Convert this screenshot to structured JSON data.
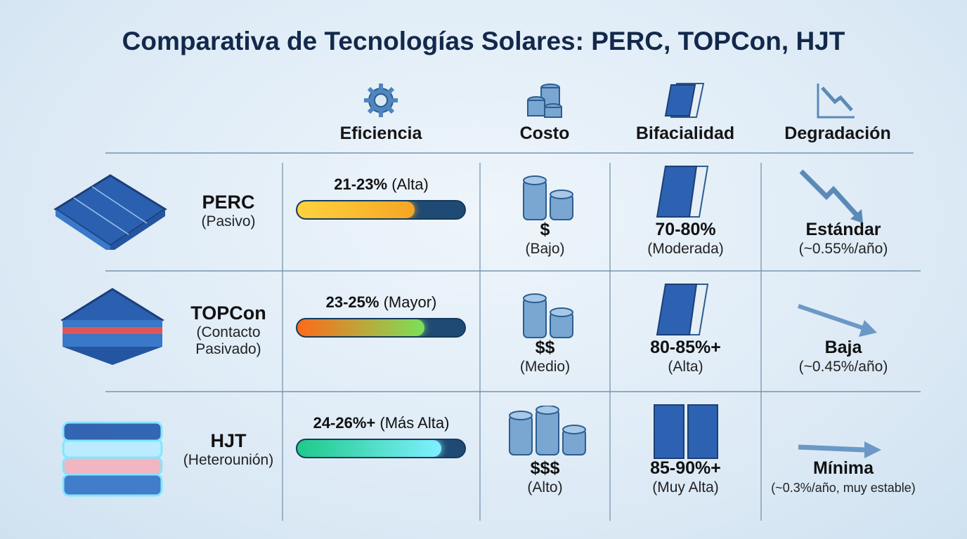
{
  "title": "Comparativa de Tecnologías Solares: PERC, TOPCon, HJT",
  "columns": [
    {
      "label": "Eficiencia",
      "icon": "gear-icon"
    },
    {
      "label": "Costo",
      "icon": "coins-icon"
    },
    {
      "label": "Bifacialidad",
      "icon": "solar-panel-icon"
    },
    {
      "label": "Degradación",
      "icon": "chart-down-icon"
    }
  ],
  "rows": [
    {
      "name": "PERC",
      "subtitle": "(Pasivo)",
      "subtitle2": "",
      "icon": "solar-cell-icon",
      "efficiency": {
        "value": "21-23%",
        "note": "(Alta)",
        "level": 0.7,
        "colors": [
          "#ffd23f",
          "#f5a623"
        ]
      },
      "cost": {
        "value": "$",
        "note": "(Bajo)"
      },
      "bifaciality": {
        "value": "70-80%",
        "note": "(Moderada)"
      },
      "degradation": {
        "value": "Estándar",
        "note": "(~0.55%/año)",
        "icon": "zigzag-down-arrow-icon"
      }
    },
    {
      "name": "TOPCon",
      "subtitle": "(Contacto",
      "subtitle2": "Pasivado)",
      "icon": "layered-cell-icon",
      "efficiency": {
        "value": "23-25%",
        "note": "(Mayor)",
        "level": 0.76,
        "colors": [
          "#ff6a1a",
          "#7be05a"
        ]
      },
      "cost": {
        "value": "$$",
        "note": "(Medio)"
      },
      "bifaciality": {
        "value": "80-85%+",
        "note": "(Alta)"
      },
      "degradation": {
        "value": "Baja",
        "note": "(~0.45%/año)",
        "icon": "slight-down-arrow-icon"
      }
    },
    {
      "name": "HJT",
      "subtitle": "(Heterounión)",
      "subtitle2": "",
      "icon": "glowing-stack-cell-icon",
      "efficiency": {
        "value": "24-26%+",
        "note": "(Más Alta)",
        "level": 0.86,
        "colors": [
          "#1fc98a",
          "#7ff0ff"
        ]
      },
      "cost": {
        "value": "$$$",
        "note": "(Alto)"
      },
      "bifaciality": {
        "value": "85-90%+",
        "note": "(Muy Alta)"
      },
      "degradation": {
        "value": "Mínima",
        "note": "(~0.3%/año, muy estable)",
        "icon": "flat-arrow-icon"
      }
    }
  ]
}
